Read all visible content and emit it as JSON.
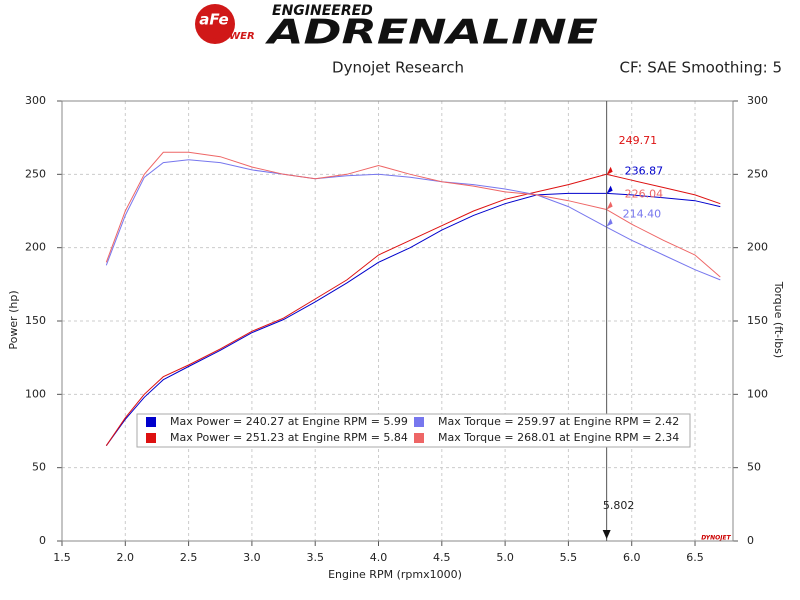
{
  "header": {
    "badge": "aFe",
    "badge_sub": "POWER",
    "logo_top": "ENGINEERED",
    "logo_main": "ADRENALINE",
    "watermark": "DYNOJET"
  },
  "chart_data": {
    "type": "line",
    "title": "Dynojet Research",
    "subtitle": "CF: SAE Smoothing: 5",
    "x_label": "Engine RPM (rpmx1000)",
    "y_label": "Power (hp)",
    "y2_label": "Torque (ft-lbs)",
    "xlim": [
      1.5,
      6.8
    ],
    "xticks": [
      1.5,
      {
        "value": 2,
        "label": "2.0"
      },
      2.5,
      {
        "value": 3,
        "label": "3.0"
      },
      3.5,
      {
        "value": 4,
        "label": "4.0"
      },
      4.5,
      {
        "value": 5,
        "label": "5.0"
      },
      5.5,
      {
        "value": 6,
        "label": "6.0"
      },
      6.5
    ],
    "ylim": [
      0,
      300
    ],
    "yticks": [
      0,
      50,
      100,
      150,
      200,
      250,
      300
    ],
    "y2lim": [
      0,
      300
    ],
    "y2ticks": [
      0,
      50,
      100,
      150,
      200,
      250,
      300
    ],
    "grid": true,
    "cursor_x": 5.802,
    "x": [
      1.85,
      2.0,
      2.15,
      2.3,
      2.5,
      2.75,
      3.0,
      3.25,
      3.5,
      3.75,
      4.0,
      4.25,
      4.5,
      4.75,
      5.0,
      5.25,
      5.5,
      5.8,
      6.0,
      6.25,
      6.5,
      6.7
    ],
    "series": [
      {
        "name": "Max Power = 240.27 at Engine RPM = 5.99",
        "color": "#0000cc",
        "values": [
          65,
          83,
          98,
          110,
          119,
          130,
          142,
          151,
          163,
          176,
          190,
          200,
          212,
          222,
          230,
          236,
          237,
          237,
          236,
          234,
          232,
          228
        ],
        "cursor_value": 236.87,
        "cursor_label": "236.87"
      },
      {
        "name": "Max Power = 251.23 at Engine RPM = 5.84",
        "color": "#dd1111",
        "values": [
          65,
          84,
          100,
          112,
          120,
          131,
          143,
          152,
          165,
          178,
          195,
          205,
          215,
          225,
          233,
          238,
          243,
          250,
          246,
          241,
          236,
          230
        ],
        "cursor_value": 249.71,
        "cursor_label": "249.71"
      },
      {
        "name": "Max Torque = 259.97 at Engine RPM = 2.42",
        "color": "#7777ee",
        "axis": "y2",
        "values": [
          188,
          222,
          248,
          258,
          260,
          258,
          253,
          250,
          247,
          249,
          250,
          248,
          245,
          243,
          240,
          236,
          228,
          214,
          205,
          195,
          185,
          178
        ],
        "cursor_value": 214.4,
        "cursor_label": "214.40"
      },
      {
        "name": "Max Torque = 268.01 at Engine RPM = 2.34",
        "color": "#ee6666",
        "axis": "y2",
        "values": [
          190,
          225,
          250,
          265,
          265,
          262,
          255,
          250,
          247,
          250,
          256,
          250,
          245,
          242,
          238,
          236,
          232,
          226,
          216,
          205,
          195,
          180
        ],
        "cursor_value": 226.04,
        "cursor_label": "226.04"
      }
    ]
  }
}
